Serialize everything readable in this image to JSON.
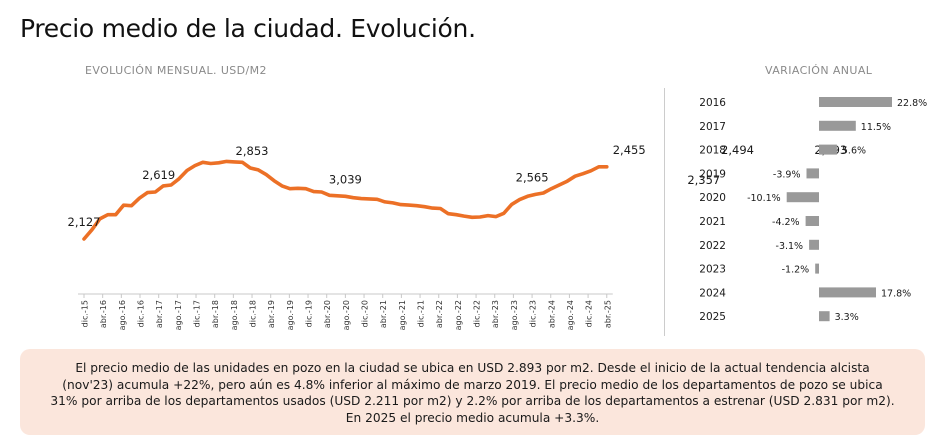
{
  "page_title": "Precio medio de la ciudad. Evolución.",
  "summary": "El precio medio de las unidades en pozo en la ciudad se ubica en USD 2.893 por m2. Desde el inicio de la actual tendencia alcista (nov'23) acumula +22%, pero aún es 4.8% inferior al máximo de marzo 2019. El precio medio de los departamentos de pozo se ubica 31% por arriba de los departamentos usados (USD 2.211 por m2) y 2.2% por arriba de los departamentos a estrenar (USD 2.831 por m2). En 2025 el precio medio acumula +3.3%.",
  "colors": {
    "line": "#ec7026",
    "bar": "#999999",
    "summary_bg": "#fbe6dc"
  },
  "chart_data": [
    {
      "type": "line",
      "title": "EVOLUCIÓN MENSUAL. USD/M2",
      "categories": [
        "dic.-15",
        "abr.-16",
        "ago.-16",
        "dic.-16",
        "abr.-17",
        "ago.-17",
        "dic.-17",
        "abr.-18",
        "ago.-18",
        "dic.-18",
        "abr.-19",
        "ago.-19",
        "dic.-19",
        "abr.-20",
        "ago.-20",
        "dic.-20",
        "abr.-21",
        "ago.-21",
        "dic.-21",
        "abr.-22",
        "ago.-22",
        "dic.-22",
        "abr.-23",
        "ago.-23",
        "dic.-23",
        "abr.-24",
        "ago.-24",
        "dic.-24",
        "abr.-25"
      ],
      "y": [
        2127,
        2225,
        2340,
        2385,
        2385,
        2485,
        2480,
        2560,
        2619,
        2625,
        2690,
        2700,
        2765,
        2853,
        2905,
        2940,
        2928,
        2935,
        2950,
        2945,
        2940,
        2880,
        2860,
        2810,
        2745,
        2690,
        2660,
        2665,
        2660,
        2630,
        2625,
        2590,
        2585,
        2580,
        2565,
        2555,
        2552,
        2548,
        2520,
        2510,
        2492,
        2487,
        2480,
        2470,
        2455,
        2450,
        2395,
        2385,
        2370,
        2357,
        2360,
        2375,
        2365,
        2400,
        2494,
        2545,
        2580,
        2600,
        2615,
        2660,
        2700,
        2740,
        2793,
        2820,
        2850,
        2893,
        2893
      ],
      "ylim": [
        2000,
        3100
      ],
      "data_labels": [
        {
          "x": 0,
          "value": "2,127"
        },
        {
          "x": 4,
          "value": "2,619"
        },
        {
          "x": 9,
          "value": "2,853"
        },
        {
          "x": 14,
          "value": "3,039"
        },
        {
          "x": 24,
          "value": "2,565"
        },
        {
          "x": 29.2,
          "value": "2,455"
        },
        {
          "x": 33.2,
          "value": "2,357"
        },
        {
          "x": 35,
          "value": "2,494"
        },
        {
          "x": 40,
          "value": "2,893"
        }
      ]
    },
    {
      "type": "bar",
      "orientation": "horizontal",
      "title": "VARIACIÓN ANUAL",
      "categories": [
        "2016",
        "2017",
        "2018",
        "2019",
        "2020",
        "2021",
        "2022",
        "2023",
        "2024",
        "2025"
      ],
      "values": [
        22.8,
        11.5,
        5.6,
        -3.9,
        -10.1,
        -4.2,
        -3.1,
        -1.2,
        17.8,
        3.3
      ],
      "value_labels": [
        "22.8%",
        "11.5%",
        "5.6%",
        "-3.9%",
        "-10.1%",
        "-4.2%",
        "-3.1%",
        "-1.2%",
        "17.8%",
        "3.3%"
      ]
    }
  ]
}
